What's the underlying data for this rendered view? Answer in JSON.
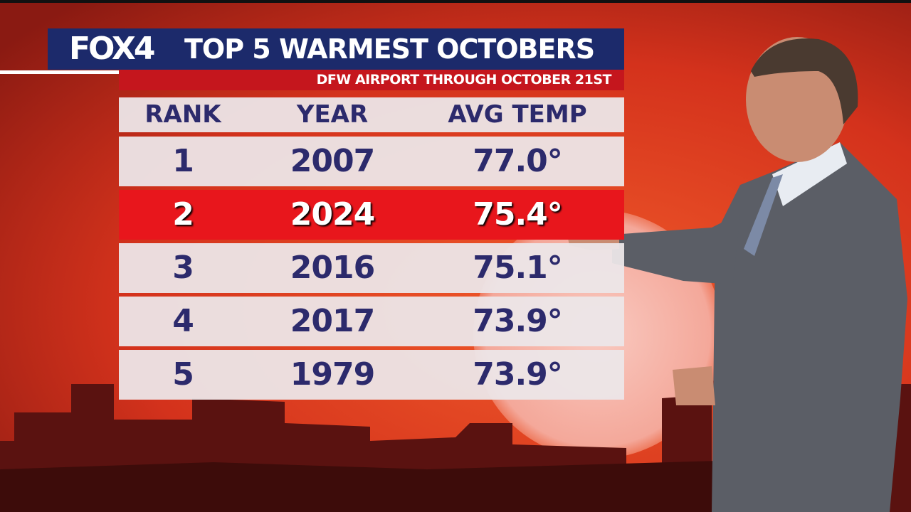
{
  "header": {
    "logo": "FOX4",
    "title": "TOP 5 WARMEST OCTOBERS",
    "subtitle": "DFW AIRPORT THROUGH OCTOBER 21ST"
  },
  "table": {
    "columns": [
      "RANK",
      "YEAR",
      "AVG TEMP"
    ],
    "rows": [
      [
        "1",
        "2007",
        "77.0°"
      ],
      [
        "2",
        "2024",
        "75.4°"
      ],
      [
        "3",
        "2016",
        "75.1°"
      ],
      [
        "4",
        "2017",
        "73.9°"
      ],
      [
        "5",
        "1979",
        "73.9°"
      ]
    ]
  }
}
